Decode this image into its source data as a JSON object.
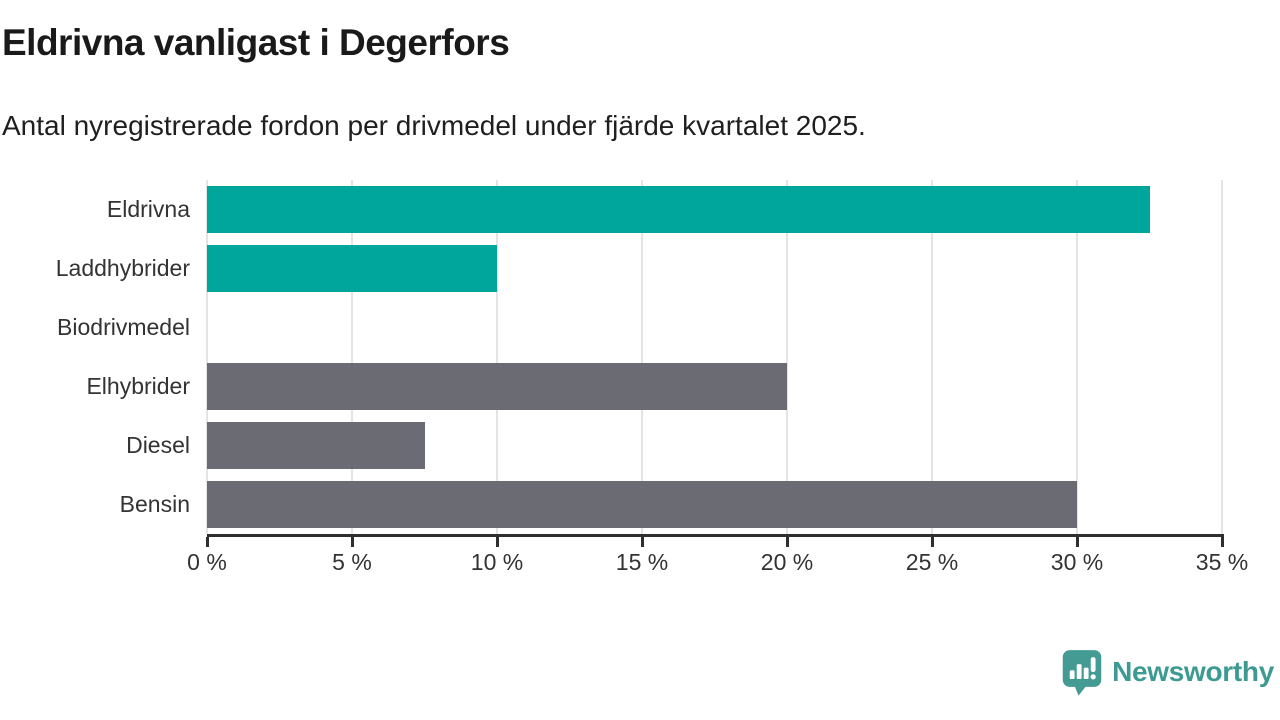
{
  "header": {
    "title": "Eldrivna vanligast i Degerfors",
    "subtitle": "Antal nyregistrerade fordon per drivmedel under fjärde kvartalet 2025."
  },
  "chart_data": {
    "type": "bar",
    "orientation": "horizontal",
    "title": "Eldrivna vanligast i Degerfors",
    "subtitle": "Antal nyregistrerade fordon per drivmedel under fjärde kvartalet 2025.",
    "categories": [
      "Eldrivna",
      "Laddhybrider",
      "Biodrivmedel",
      "Elhybrider",
      "Diesel",
      "Bensin"
    ],
    "values": [
      32.5,
      10,
      0,
      20,
      7.5,
      30
    ],
    "unit": "%",
    "xlim": [
      0,
      35
    ],
    "x_ticks": [
      0,
      5,
      10,
      15,
      20,
      25,
      30,
      35
    ],
    "x_tick_labels": [
      "0 %",
      "5 %",
      "10 %",
      "15 %",
      "20 %",
      "25 %",
      "30 %",
      "35 %"
    ],
    "grid": true,
    "legend": false,
    "bar_colors": [
      "#00a59c",
      "#00a59c",
      "#6b6b73",
      "#6b6b73",
      "#6b6b73",
      "#6b6b73"
    ],
    "highlight_color": "#00a59c",
    "default_color": "#6b6b73",
    "gridline_color": "#e4e4e4",
    "axis_color": "#2f2f2f"
  },
  "footer": {
    "brand": "Newsworthy",
    "brand_color": "#3d9a92",
    "logo_icon": "bar-chart-speech-bubble-icon",
    "logo_fill": "#449b94"
  }
}
